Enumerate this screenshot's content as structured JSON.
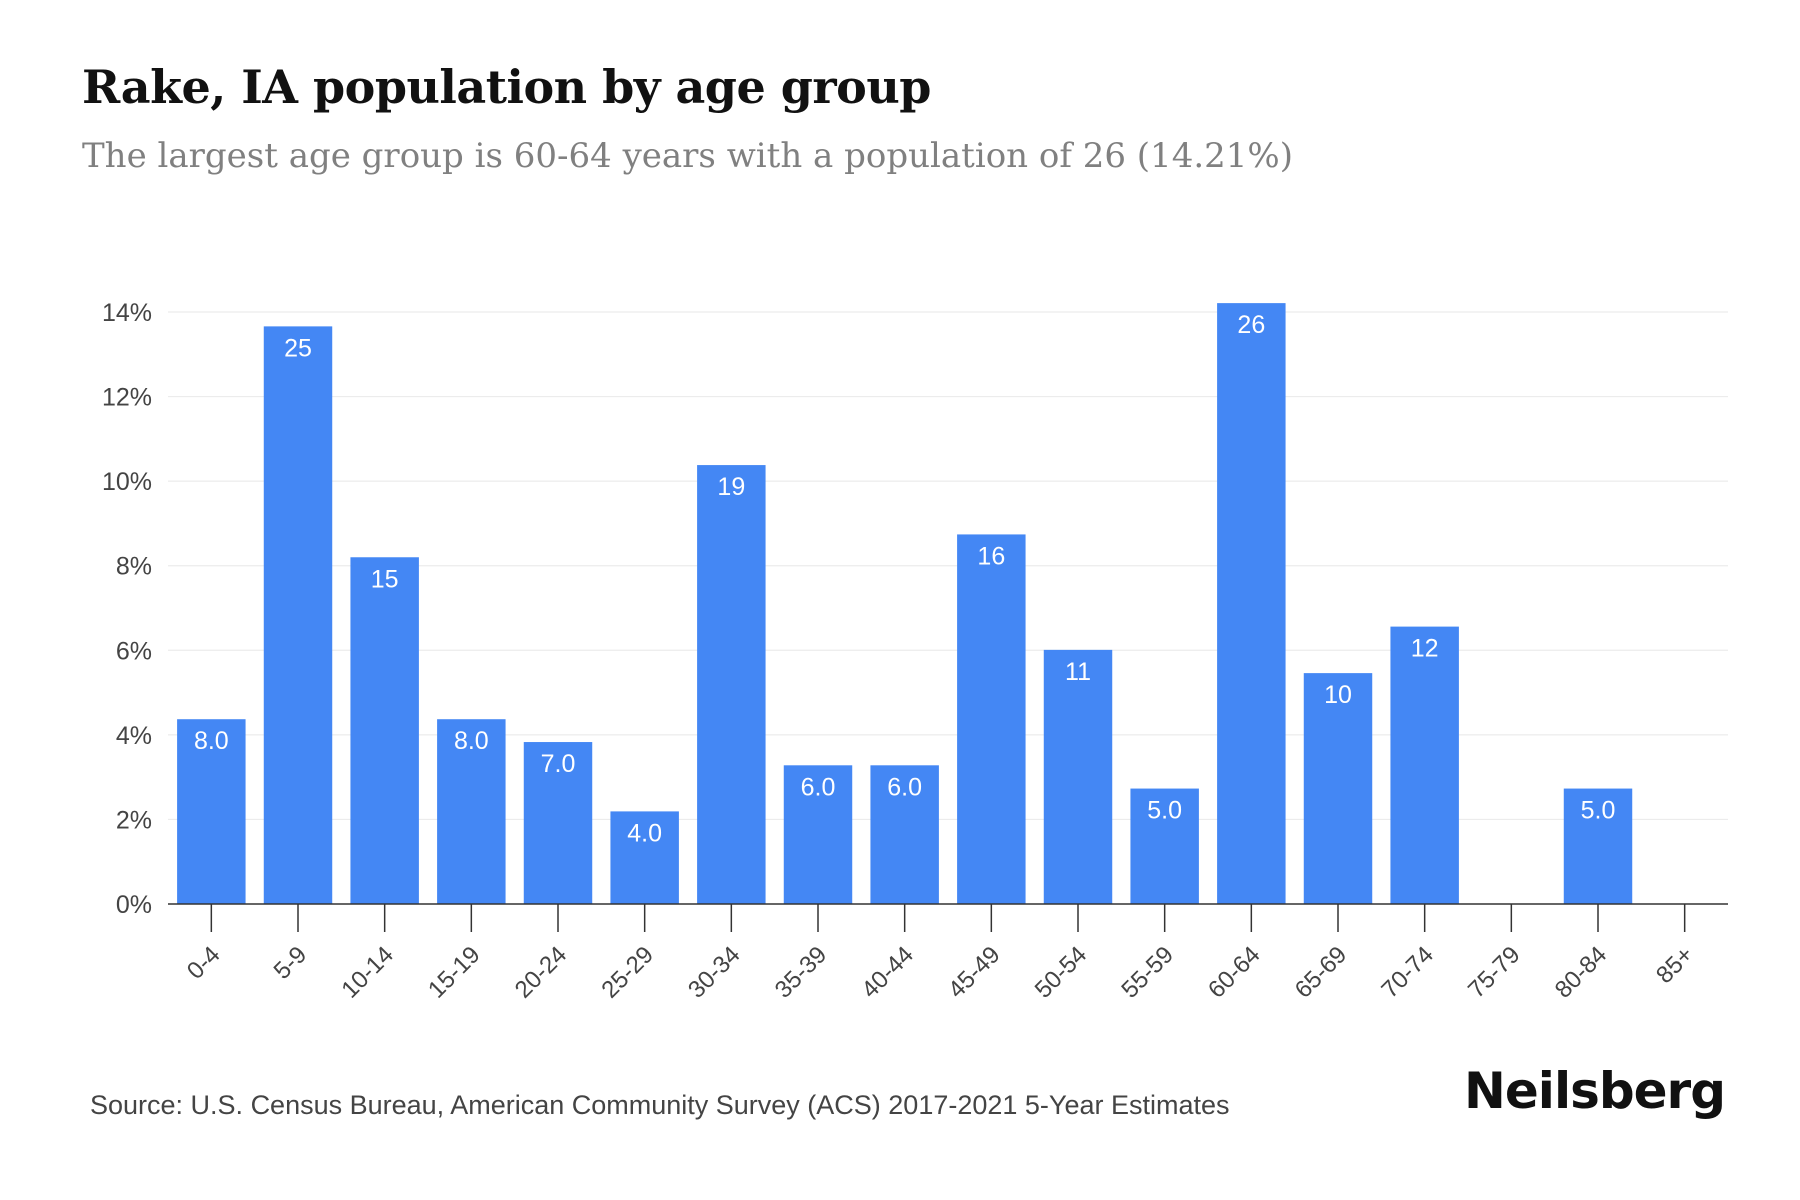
{
  "page": {
    "title": "Rake, IA population by age group",
    "subtitle": "The largest age group is 60-64 years with a population of 26 (14.21%)",
    "source": "Source: U.S. Census Bureau, American Community Survey (ACS) 2017-2021 5-Year Estimates",
    "brand": "Neilsberg"
  },
  "chart_data": {
    "type": "bar",
    "categories": [
      "0-4",
      "5-9",
      "10-14",
      "15-19",
      "20-24",
      "25-29",
      "30-34",
      "35-39",
      "40-44",
      "45-49",
      "50-54",
      "55-59",
      "60-64",
      "65-69",
      "70-74",
      "75-79",
      "80-84",
      "85+"
    ],
    "values": [
      4.37,
      13.66,
      8.2,
      4.37,
      3.83,
      2.19,
      10.38,
      3.28,
      3.28,
      8.74,
      6.01,
      2.73,
      14.21,
      5.46,
      6.56,
      0,
      2.73,
      0
    ],
    "data_labels": [
      "8.0",
      "25",
      "15",
      "8.0",
      "7.0",
      "4.0",
      "19",
      "6.0",
      "6.0",
      "16",
      "11",
      "5.0",
      "26",
      "10",
      "12",
      "",
      "5.0",
      ""
    ],
    "yticks": [
      "0%",
      "2%",
      "4%",
      "6%",
      "8%",
      "10%",
      "12%",
      "14%"
    ],
    "ylim": [
      0,
      14
    ],
    "xlabel": "",
    "ylabel": "",
    "grid": true,
    "bar_color": "#4487f4"
  }
}
